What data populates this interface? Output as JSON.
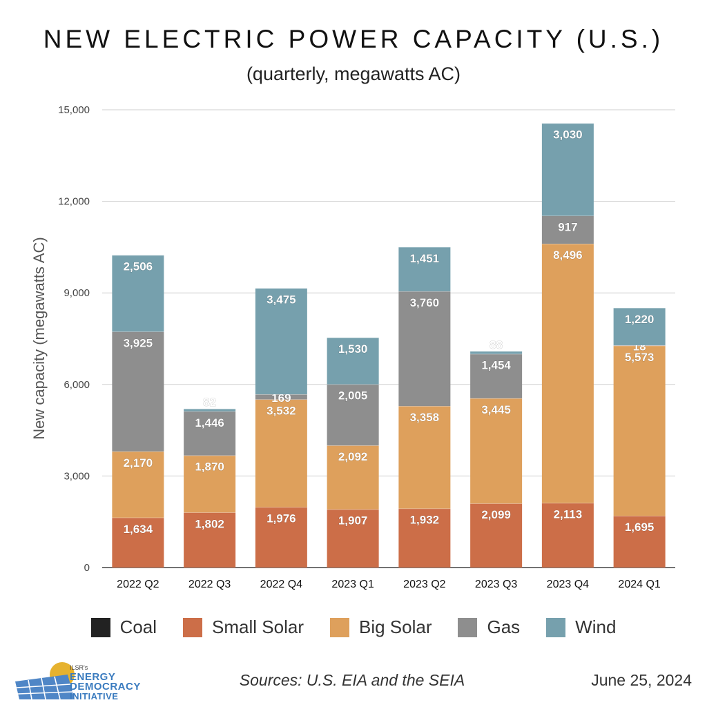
{
  "header": {
    "title": "NEW ELECTRIC POWER CAPACITY (U.S.)",
    "subtitle": "(quarterly, megawatts AC)"
  },
  "footer": {
    "sources": "Sources: U.S. EIA and the SEIA",
    "date": "June 25, 2024",
    "logo": {
      "org": "ILSR's",
      "line1": "ENERGY",
      "line2": "DEMOCRACY",
      "line3": "INITIATIVE"
    }
  },
  "chart_data": {
    "type": "bar",
    "stacked": true,
    "title": "NEW ELECTRIC POWER CAPACITY (U.S.)",
    "subtitle": "(quarterly, megawatts AC)",
    "xlabel": "",
    "ylabel": "New capacity (megawatts AC)",
    "ylim": [
      0,
      15000
    ],
    "yticks": [
      0,
      3000,
      6000,
      9000,
      12000,
      15000
    ],
    "ytick_labels": [
      "0",
      "3,000",
      "6,000",
      "9,000",
      "12,000",
      "15,000"
    ],
    "grid": true,
    "legend_position": "bottom",
    "categories": [
      "2022 Q2",
      "2022 Q3",
      "2022 Q4",
      "2023 Q1",
      "2023 Q2",
      "2023 Q3",
      "2023 Q4",
      "2024 Q1"
    ],
    "series": [
      {
        "name": "Coal",
        "color": "#222222",
        "values": [
          0,
          0,
          0,
          0,
          0,
          0,
          0,
          0
        ],
        "labels": [
          "",
          "",
          "",
          "",
          "",
          "",
          "",
          ""
        ]
      },
      {
        "name": "Small Solar",
        "color": "#cc6e48",
        "values": [
          1634,
          1802,
          1976,
          1907,
          1932,
          2099,
          2113,
          1695
        ],
        "labels": [
          "1,634",
          "1,802",
          "1,976",
          "1,907",
          "1,932",
          "2,099",
          "2,113",
          "1,695"
        ]
      },
      {
        "name": "Big Solar",
        "color": "#dea05c",
        "values": [
          2170,
          1870,
          3532,
          2092,
          3358,
          3445,
          8496,
          5573
        ],
        "labels": [
          "2,170",
          "1,870",
          "3,532",
          "2,092",
          "3,358",
          "3,445",
          "8,496",
          "5,573"
        ]
      },
      {
        "name": "Gas",
        "color": "#8e8e8e",
        "values": [
          3925,
          1446,
          169,
          2005,
          3760,
          1454,
          917,
          18
        ],
        "labels": [
          "3,925",
          "1,446",
          "169",
          "2,005",
          "3,760",
          "1,454",
          "917",
          "18"
        ]
      },
      {
        "name": "Wind",
        "color": "#76a0ad",
        "values": [
          2506,
          82,
          3475,
          1530,
          1451,
          88,
          3030,
          1220
        ],
        "labels": [
          "2,506",
          "82",
          "3,475",
          "1,530",
          "1,451",
          "88",
          "3,030",
          "1,220"
        ]
      }
    ]
  }
}
